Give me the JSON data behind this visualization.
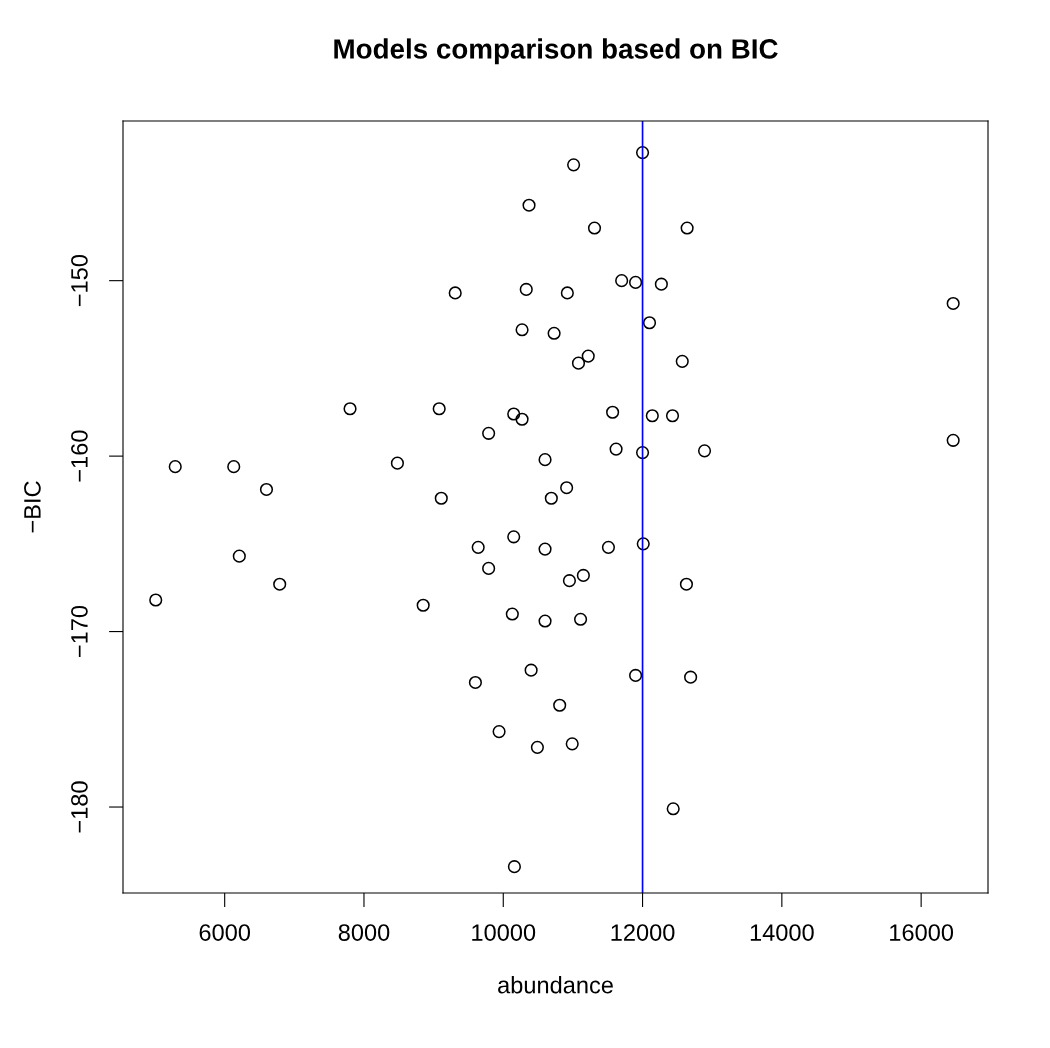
{
  "chart_data": {
    "type": "scatter",
    "title": "Models comparison based on BIC",
    "xlabel": "abundance",
    "ylabel": "−BIC",
    "xlim": [
      4540,
      16960
    ],
    "xticks": [
      6000,
      8000,
      10000,
      12000,
      14000,
      16000
    ],
    "ylim": [
      -184.9,
      -140.9
    ],
    "yticks": [
      {
        "value": -150,
        "label": "−150"
      },
      {
        "value": -160,
        "label": "−160"
      },
      {
        "value": -170,
        "label": "−170"
      },
      {
        "value": -180,
        "label": "−180"
      }
    ],
    "grid": false,
    "legend": false,
    "marker": "circle",
    "series": [
      {
        "color": "#000000",
        "x": [
          12000,
          11010,
          10370,
          11310,
          12640,
          11700,
          11900,
          12270,
          9310,
          10330,
          10920,
          16460,
          10270,
          10730,
          12100,
          11220,
          11080,
          12570,
          7800,
          9080,
          10150,
          10270,
          11570,
          12140,
          12430,
          9790,
          16460,
          11620,
          12000,
          12890,
          5290,
          6130,
          8480,
          10600,
          6600,
          10910,
          9110,
          10690,
          9640,
          10150,
          10600,
          11510,
          12010,
          6210,
          9790,
          11150,
          10950,
          6790,
          12630,
          5010,
          8850,
          10130,
          10600,
          11110,
          9600,
          10400,
          11900,
          12690,
          10810,
          9940,
          10490,
          10990,
          12440,
          10160
        ],
        "values": [
          -142.7,
          -143.4,
          -145.7,
          -147.0,
          -147.0,
          -150.0,
          -150.1,
          -150.2,
          -150.7,
          -150.5,
          -150.7,
          -151.3,
          -152.8,
          -153.0,
          -152.4,
          -154.3,
          -154.7,
          -154.6,
          -157.3,
          -157.3,
          -157.6,
          -157.9,
          -157.5,
          -157.7,
          -157.7,
          -158.7,
          -159.1,
          -159.6,
          -159.8,
          -159.7,
          -160.6,
          -160.6,
          -160.4,
          -160.2,
          -161.9,
          -161.8,
          -162.4,
          -162.4,
          -165.2,
          -164.6,
          -165.3,
          -165.2,
          -165.0,
          -165.7,
          -166.4,
          -166.8,
          -167.1,
          -167.3,
          -167.3,
          -168.2,
          -168.5,
          -169.0,
          -169.4,
          -169.3,
          -172.9,
          -172.2,
          -172.5,
          -172.6,
          -174.2,
          -175.7,
          -176.6,
          -176.4,
          -180.1,
          -183.4
        ]
      }
    ],
    "ref_lines": [
      {
        "axis": "x",
        "value": 12000,
        "color": "#0000ff",
        "line_style": "solid"
      }
    ]
  }
}
